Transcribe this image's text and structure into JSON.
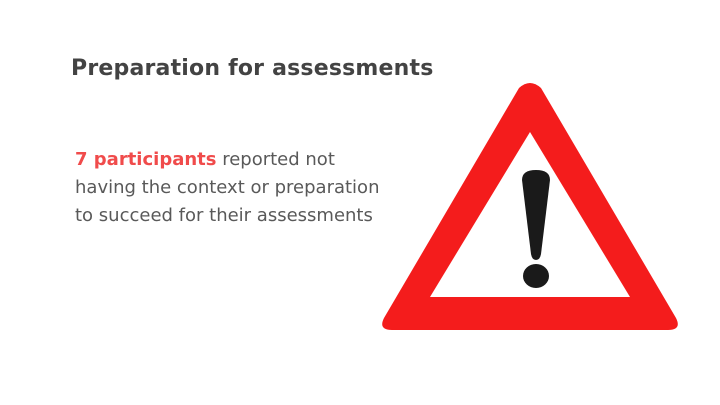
{
  "slide": {
    "title": "Preparation for assessments",
    "body": {
      "highlight": "7 participants",
      "rest": " reported not having the context or preparation to succeed for their assessments"
    }
  },
  "colors": {
    "title": "#434343",
    "body": "#595959",
    "highlight": "#f04b4b",
    "sign_red": "#f41c1c",
    "sign_white": "#ffffff",
    "exclamation": "#1a1a1a"
  },
  "icon": {
    "name": "warning-triangle-icon"
  }
}
